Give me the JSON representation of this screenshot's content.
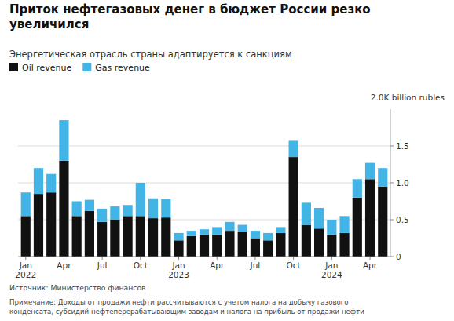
{
  "chart_data": {
    "type": "bar",
    "stacked": true,
    "title": "Приток нефтегазовых денег в бюджет России резко\nувеличился",
    "subtitle": "Энергетическая отрасль страны адаптируется к санкциям",
    "ylabel": "2.0K billion rubles",
    "source": "Источник: Министерство финансов",
    "note": "Примечание: Доходы от продажи нефти рассчитываются с учетом налога на добычу газового\nконденсата, субсидий нефтеперерабатывающим заводам и налога на прибыль от продажи нефти",
    "categories": [
      "Jan\n2022",
      null,
      null,
      "Apr",
      null,
      null,
      "Jul",
      null,
      null,
      "Oct",
      null,
      null,
      "Jan\n2023",
      null,
      null,
      "Apr",
      null,
      null,
      "Jul",
      null,
      null,
      "Oct",
      null,
      null,
      "Jan\n2024",
      null,
      null,
      "Apr",
      null
    ],
    "series": [
      {
        "name": "Oil revenue",
        "color": "#111111",
        "values": [
          0.55,
          0.85,
          0.87,
          1.3,
          0.55,
          0.62,
          0.47,
          0.5,
          0.55,
          0.55,
          0.52,
          0.53,
          0.22,
          0.28,
          0.3,
          0.3,
          0.35,
          0.33,
          0.25,
          0.22,
          0.32,
          1.35,
          0.43,
          0.38,
          0.3,
          0.32,
          0.8,
          1.05,
          0.95
        ]
      },
      {
        "name": "Gas revenue",
        "color": "#42b4e6",
        "values": [
          0.32,
          0.35,
          0.25,
          0.55,
          0.2,
          0.15,
          0.18,
          0.18,
          0.15,
          0.45,
          0.27,
          0.25,
          0.1,
          0.07,
          0.07,
          0.1,
          0.12,
          0.1,
          0.1,
          0.1,
          0.08,
          0.22,
          0.3,
          0.28,
          0.2,
          0.23,
          0.25,
          0.22,
          0.25
        ]
      }
    ],
    "ylim": [
      0,
      2.0
    ],
    "yticks": [
      0,
      0.5,
      {
        "value": 1.0,
        "label": "1.0"
      },
      1.5
    ],
    "grid": true,
    "legend": "upper left"
  }
}
